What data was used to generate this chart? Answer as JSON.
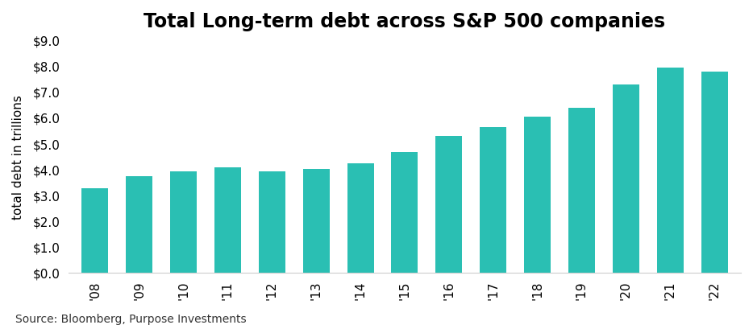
{
  "title": "Total Long-term debt across S&P 500 companies",
  "categories": [
    "'08",
    "'09",
    "'10",
    "'11",
    "'12",
    "'13",
    "'14",
    "'15",
    "'16",
    "'17",
    "'18",
    "'19",
    "'20",
    "'21",
    "'22"
  ],
  "values": [
    3.3,
    3.75,
    3.95,
    4.1,
    3.95,
    4.05,
    4.25,
    4.7,
    5.3,
    5.65,
    6.05,
    6.4,
    7.3,
    7.95,
    7.8
  ],
  "bar_color": "#2abfb3",
  "ylabel": "total debt in trillions",
  "ylim": [
    0,
    9.0
  ],
  "yticks": [
    0.0,
    1.0,
    2.0,
    3.0,
    4.0,
    5.0,
    6.0,
    7.0,
    8.0,
    9.0
  ],
  "source_text": "Source: Bloomberg, Purpose Investments",
  "background_color": "#ffffff",
  "title_fontsize": 17,
  "label_fontsize": 11,
  "tick_fontsize": 11,
  "source_fontsize": 10,
  "bar_width": 0.6
}
